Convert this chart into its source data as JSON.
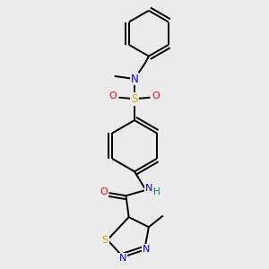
{
  "background_color": "#ebebeb",
  "atom_colors": {
    "C": "#000000",
    "N": "#0000ff",
    "O": "#ff0000",
    "S": "#ccaa00",
    "H": "#008080"
  },
  "figsize": [
    3.0,
    3.0
  ],
  "dpi": 100,
  "lw": 1.4
}
